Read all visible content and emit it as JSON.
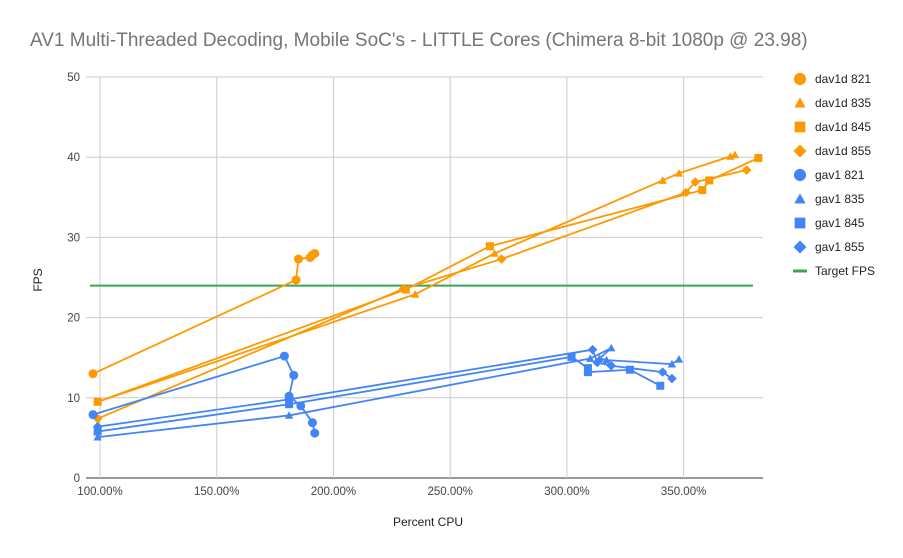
{
  "chart_data": {
    "type": "scatter",
    "title": "AV1 Multi-Threaded Decoding, Mobile SoC's - LITTLE Cores (Chimera 8-bit 1080p @ 23.98)",
    "xlabel": "Percent CPU",
    "ylabel": "FPS",
    "xlim": [
      0.94,
      3.84
    ],
    "ylim": [
      0,
      50
    ],
    "x_ticks": [
      {
        "value": 1.0,
        "label": "100.00%"
      },
      {
        "value": 1.5,
        "label": "150.00%"
      },
      {
        "value": 2.0,
        "label": "200.00%"
      },
      {
        "value": 2.5,
        "label": "250.00%"
      },
      {
        "value": 3.0,
        "label": "300.00%"
      },
      {
        "value": 3.5,
        "label": "350.00%"
      }
    ],
    "y_ticks": [
      {
        "value": 0,
        "label": "0"
      },
      {
        "value": 10,
        "label": "10"
      },
      {
        "value": 20,
        "label": "20"
      },
      {
        "value": 30,
        "label": "30"
      },
      {
        "value": 40,
        "label": "40"
      },
      {
        "value": 50,
        "label": "50"
      }
    ],
    "grid": true,
    "legend_position": "right",
    "reference_line": {
      "name": "Target FPS",
      "y": 23.98,
      "color": "#34a853"
    },
    "series": [
      {
        "name": "dav1d 821",
        "marker": "circle",
        "color": "#ff9900",
        "points": [
          [
            0.97,
            13.0
          ],
          [
            1.84,
            24.7
          ],
          [
            1.85,
            27.3
          ],
          [
            1.9,
            27.5
          ],
          [
            1.91,
            27.8
          ],
          [
            1.92,
            28.0
          ]
        ]
      },
      {
        "name": "dav1d 835",
        "marker": "triangle",
        "color": "#ff9900",
        "points": [
          [
            0.99,
            9.5
          ],
          [
            2.35,
            22.9
          ],
          [
            2.69,
            28.0
          ],
          [
            3.41,
            37.1
          ],
          [
            3.48,
            38.0
          ],
          [
            3.7,
            40.1
          ],
          [
            3.72,
            40.3
          ]
        ]
      },
      {
        "name": "dav1d 845",
        "marker": "square",
        "color": "#ff9900",
        "points": [
          [
            0.99,
            9.5
          ],
          [
            2.31,
            23.5
          ],
          [
            2.67,
            28.9
          ],
          [
            3.58,
            35.9
          ],
          [
            3.61,
            37.1
          ],
          [
            3.82,
            39.9
          ]
        ]
      },
      {
        "name": "dav1d 855",
        "marker": "diamond",
        "color": "#ff9900",
        "points": [
          [
            0.99,
            7.4
          ],
          [
            2.3,
            23.6
          ],
          [
            2.72,
            27.3
          ],
          [
            3.51,
            35.6
          ],
          [
            3.55,
            36.9
          ],
          [
            3.77,
            38.4
          ]
        ]
      },
      {
        "name": "gav1 821",
        "marker": "circle",
        "color": "#4285f4",
        "points": [
          [
            0.97,
            7.9
          ],
          [
            1.79,
            15.2
          ],
          [
            1.83,
            12.8
          ],
          [
            1.81,
            10.2
          ],
          [
            1.86,
            9.0
          ],
          [
            1.91,
            6.9
          ],
          [
            1.92,
            5.6
          ]
        ]
      },
      {
        "name": "gav1 835",
        "marker": "triangle",
        "color": "#4285f4",
        "points": [
          [
            0.99,
            5.1
          ],
          [
            1.81,
            7.8
          ],
          [
            3.1,
            14.9
          ],
          [
            3.19,
            16.2
          ],
          [
            3.14,
            14.9
          ],
          [
            3.17,
            14.7
          ],
          [
            3.45,
            14.2
          ],
          [
            3.48,
            14.8
          ]
        ]
      },
      {
        "name": "gav1 845",
        "marker": "square",
        "color": "#4285f4",
        "points": [
          [
            0.99,
            5.8
          ],
          [
            1.81,
            9.2
          ],
          [
            3.02,
            15.1
          ],
          [
            3.09,
            13.7
          ],
          [
            3.09,
            13.2
          ],
          [
            3.27,
            13.5
          ],
          [
            3.4,
            11.5
          ]
        ]
      },
      {
        "name": "gav1 855",
        "marker": "diamond",
        "color": "#4285f4",
        "points": [
          [
            0.99,
            6.4
          ],
          [
            1.81,
            9.8
          ],
          [
            3.11,
            16.0
          ],
          [
            3.13,
            14.4
          ],
          [
            3.19,
            14.0
          ],
          [
            3.41,
            13.2
          ],
          [
            3.45,
            12.4
          ]
        ]
      }
    ]
  }
}
